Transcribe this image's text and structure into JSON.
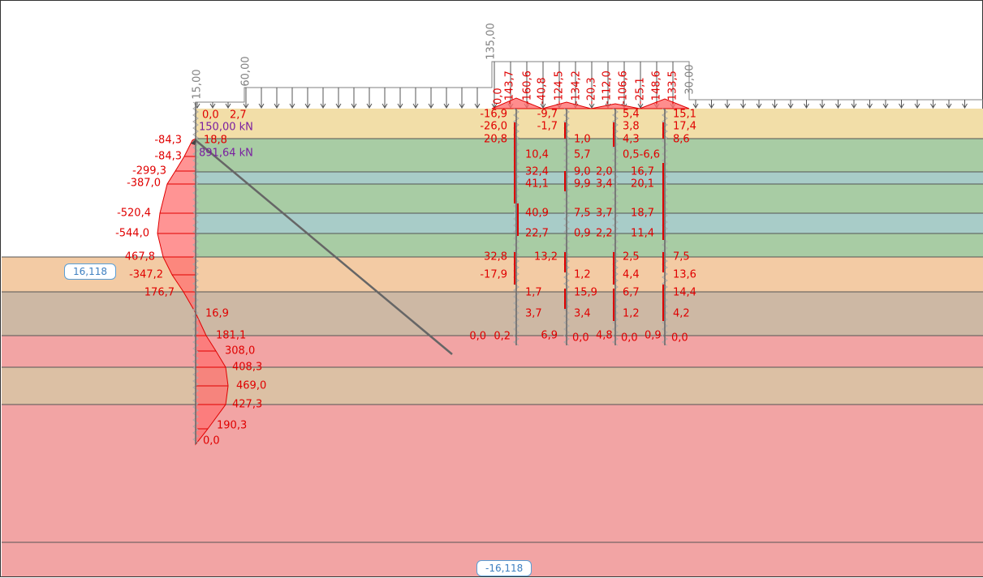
{
  "colors": {
    "moment": "#e00000",
    "fill": "#ff7070",
    "force": "#7a1fa0",
    "load": "#808080",
    "yellow": "#f2dea8",
    "green": "#a8cca4",
    "blue": "#a8ccc8",
    "orange": "#f3cba4",
    "tan": "#cdb8a4",
    "pink": "#f2a4a4",
    "tan2": "#dcc0a4"
  },
  "water_levels": {
    "upper": "16,118",
    "lower": "-16,118"
  },
  "loads": {
    "wall_top": "15,00",
    "strip": "60,00",
    "raft": "135,00",
    "right": "30,00"
  },
  "anchor": {
    "force_1": "150,00 kN",
    "force_2": "891,64 kN"
  },
  "wall_moments": [
    "0,0",
    "2,7",
    "18,8",
    "-84,3",
    "-84,3",
    "-299,3",
    "-387,0",
    "-520,4",
    "-544,0",
    "467,8",
    "-347,2",
    "176,7",
    "16,9",
    "181,1",
    "308,0",
    "408,3",
    "469,0",
    "427,3",
    "190,3",
    "0,0"
  ],
  "raft_moments": [
    "0,0",
    "-143,7",
    "-160,6",
    "-40,8",
    "-124,5",
    "-134,2",
    "-20,3",
    "-112,0",
    "-106,6",
    "-25,1",
    "-148,6",
    "-133,5"
  ],
  "pile_values": [
    "-16,9",
    "-26,0",
    "20,8",
    "10,4",
    "32,4",
    "41,1",
    "40,9",
    "22,7",
    "32,8",
    "13,2",
    "-17,9",
    "1,7",
    "3,7",
    "0,0",
    "0,2",
    "6,9",
    "-9,7",
    "-1,7",
    "1,0",
    "5,7",
    "9,0",
    "9,9",
    "7,5",
    "0,9",
    "1,2",
    "15,9",
    "3,4",
    "0,0",
    "2,0",
    "3,4",
    "3,7",
    "2,2",
    "4,8",
    "5,4",
    "3,8",
    "4,3",
    "0,5-6,6",
    "16,7",
    "20,1",
    "18,7",
    "11,4",
    "2,5",
    "4,4",
    "6,7",
    "1,2",
    "0,0",
    "0,9",
    "15,1",
    "17,4",
    "8,6",
    "7,5",
    "13,6",
    "14,4",
    "4,2",
    "0,0"
  ]
}
